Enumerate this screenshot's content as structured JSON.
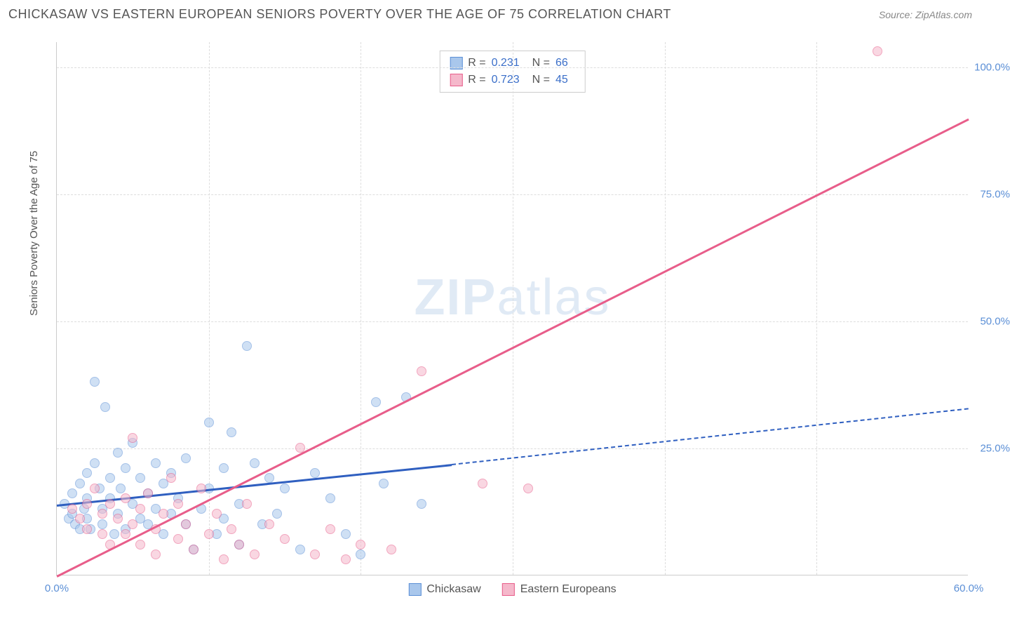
{
  "header": {
    "title": "CHICKASAW VS EASTERN EUROPEAN SENIORS POVERTY OVER THE AGE OF 75 CORRELATION CHART",
    "source_prefix": "Source: ",
    "source": "ZipAtlas.com"
  },
  "chart": {
    "type": "scatter",
    "ylabel": "Seniors Poverty Over the Age of 75",
    "xlim": [
      0,
      60
    ],
    "ylim": [
      0,
      105
    ],
    "xticks": [
      0,
      60
    ],
    "xtick_labels": [
      "0.0%",
      "60.0%"
    ],
    "yticks": [
      25,
      50,
      75,
      100
    ],
    "ytick_labels": [
      "25.0%",
      "50.0%",
      "75.0%",
      "100.0%"
    ],
    "x_gridlines": [
      10,
      20,
      30,
      40,
      50
    ],
    "background_color": "#ffffff",
    "grid_color": "#dddddd",
    "axis_color": "#cccccc",
    "tick_label_color": "#5b8fd6",
    "marker_radius": 7,
    "marker_opacity": 0.55,
    "watermark": "ZIPatlas",
    "series": [
      {
        "name": "Chickasaw",
        "fill_color": "#a9c7ec",
        "stroke_color": "#5b8fd6",
        "line_color": "#2f5fc0",
        "line_width": 2.5,
        "dash_extrapolate": true,
        "R": "0.231",
        "N": "66",
        "regression": {
          "x1": 0,
          "y1": 14,
          "x2_solid": 26,
          "y2_solid": 22,
          "x2_dash": 60,
          "y2_dash": 33
        },
        "points": [
          [
            0.5,
            14
          ],
          [
            0.8,
            11
          ],
          [
            1,
            16
          ],
          [
            1,
            12
          ],
          [
            1.2,
            10
          ],
          [
            1.5,
            18
          ],
          [
            1.5,
            9
          ],
          [
            1.8,
            13
          ],
          [
            2,
            20
          ],
          [
            2,
            15
          ],
          [
            2,
            11
          ],
          [
            2.2,
            9
          ],
          [
            2.5,
            38
          ],
          [
            2.5,
            22
          ],
          [
            2.8,
            17
          ],
          [
            3,
            13
          ],
          [
            3,
            10
          ],
          [
            3.2,
            33
          ],
          [
            3.5,
            19
          ],
          [
            3.5,
            15
          ],
          [
            3.8,
            8
          ],
          [
            4,
            24
          ],
          [
            4,
            12
          ],
          [
            4.2,
            17
          ],
          [
            4.5,
            21
          ],
          [
            4.5,
            9
          ],
          [
            5,
            26
          ],
          [
            5,
            14
          ],
          [
            5.5,
            19
          ],
          [
            5.5,
            11
          ],
          [
            6,
            16
          ],
          [
            6,
            10
          ],
          [
            6.5,
            22
          ],
          [
            6.5,
            13
          ],
          [
            7,
            18
          ],
          [
            7,
            8
          ],
          [
            7.5,
            20
          ],
          [
            7.5,
            12
          ],
          [
            8,
            15
          ],
          [
            8.5,
            23
          ],
          [
            8.5,
            10
          ],
          [
            9,
            5
          ],
          [
            9.5,
            13
          ],
          [
            10,
            30
          ],
          [
            10,
            17
          ],
          [
            10.5,
            8
          ],
          [
            11,
            21
          ],
          [
            11,
            11
          ],
          [
            11.5,
            28
          ],
          [
            12,
            14
          ],
          [
            12,
            6
          ],
          [
            12.5,
            45
          ],
          [
            13,
            22
          ],
          [
            13.5,
            10
          ],
          [
            14,
            19
          ],
          [
            14.5,
            12
          ],
          [
            15,
            17
          ],
          [
            16,
            5
          ],
          [
            17,
            20
          ],
          [
            18,
            15
          ],
          [
            19,
            8
          ],
          [
            20,
            4
          ],
          [
            21,
            34
          ],
          [
            21.5,
            18
          ],
          [
            23,
            35
          ],
          [
            24,
            14
          ]
        ]
      },
      {
        "name": "Eastern Europeans",
        "fill_color": "#f5b8cb",
        "stroke_color": "#e85d8a",
        "line_color": "#e85d8a",
        "line_width": 2.5,
        "dash_extrapolate": false,
        "R": "0.723",
        "N": "45",
        "regression": {
          "x1": 0,
          "y1": 0,
          "x2_solid": 60,
          "y2_solid": 90,
          "x2_dash": 60,
          "y2_dash": 90
        },
        "points": [
          [
            1,
            13
          ],
          [
            1.5,
            11
          ],
          [
            2,
            14
          ],
          [
            2,
            9
          ],
          [
            2.5,
            17
          ],
          [
            3,
            12
          ],
          [
            3,
            8
          ],
          [
            3.5,
            14
          ],
          [
            3.5,
            6
          ],
          [
            4,
            11
          ],
          [
            4.5,
            15
          ],
          [
            4.5,
            8
          ],
          [
            5,
            27
          ],
          [
            5,
            10
          ],
          [
            5.5,
            13
          ],
          [
            5.5,
            6
          ],
          [
            6,
            16
          ],
          [
            6.5,
            9
          ],
          [
            6.5,
            4
          ],
          [
            7,
            12
          ],
          [
            7.5,
            19
          ],
          [
            8,
            7
          ],
          [
            8,
            14
          ],
          [
            8.5,
            10
          ],
          [
            9,
            5
          ],
          [
            9.5,
            17
          ],
          [
            10,
            8
          ],
          [
            10.5,
            12
          ],
          [
            11,
            3
          ],
          [
            11.5,
            9
          ],
          [
            12,
            6
          ],
          [
            12.5,
            14
          ],
          [
            13,
            4
          ],
          [
            14,
            10
          ],
          [
            15,
            7
          ],
          [
            16,
            25
          ],
          [
            17,
            4
          ],
          [
            18,
            9
          ],
          [
            19,
            3
          ],
          [
            20,
            6
          ],
          [
            22,
            5
          ],
          [
            24,
            40
          ],
          [
            28,
            18
          ],
          [
            31,
            17
          ],
          [
            54,
            103
          ]
        ]
      }
    ],
    "legend": {
      "items": [
        "Chickasaw",
        "Eastern Europeans"
      ]
    }
  }
}
